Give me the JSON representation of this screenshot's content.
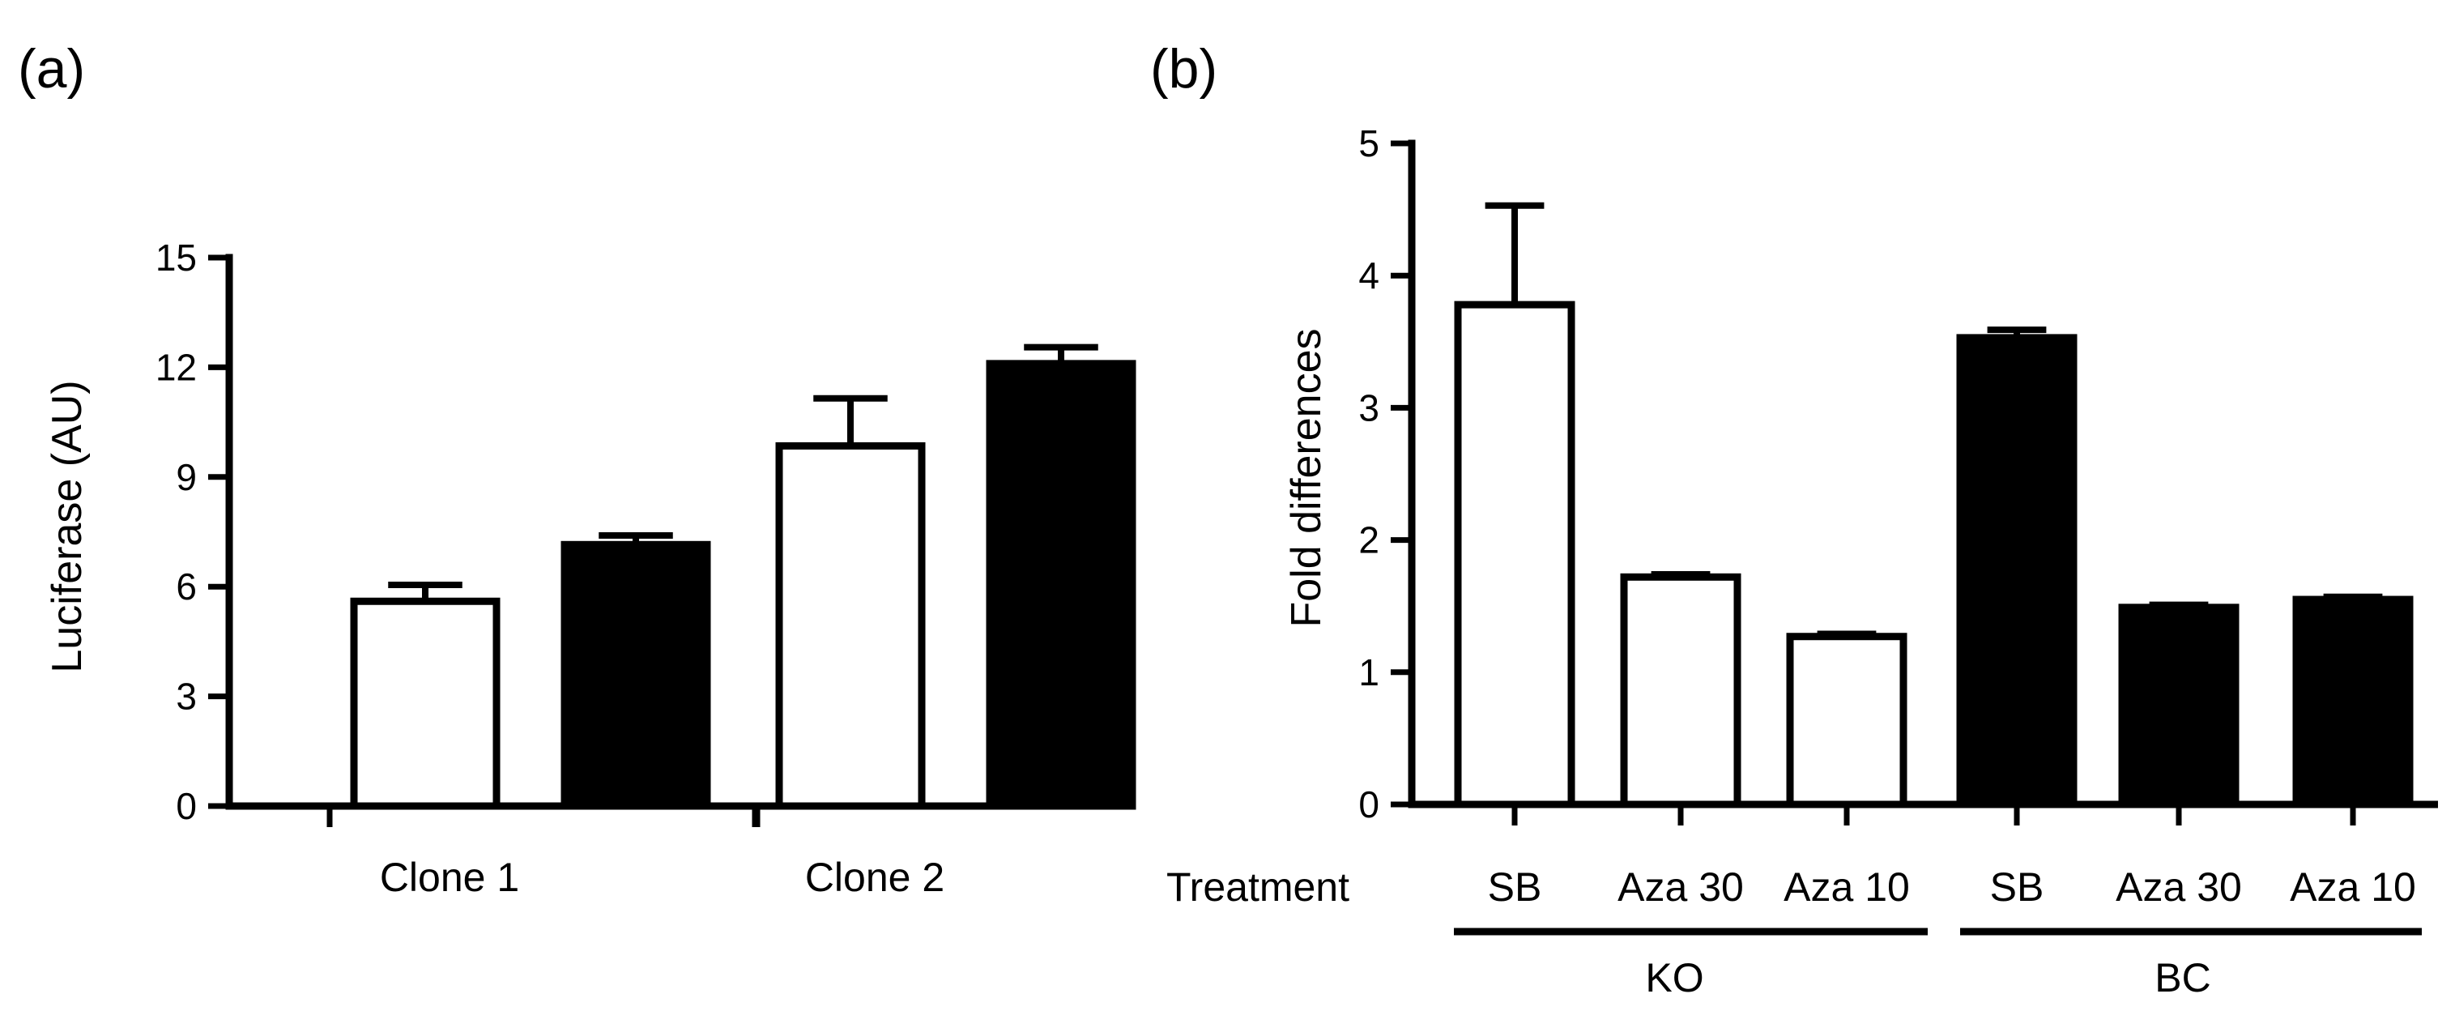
{
  "chart_data": [
    {
      "panel_label": "(a)",
      "type": "bar",
      "ylabel": "Luciferase (AU)",
      "ylim": [
        0,
        15
      ],
      "yticks": [
        0,
        3,
        6,
        9,
        12,
        15
      ],
      "ytick_labels": [
        "0",
        "3",
        "6",
        "9",
        "12",
        "15"
      ],
      "groups": [
        {
          "label": "Clone 1",
          "bars": [
            {
              "fill": "white",
              "value": 5.6,
              "error": 0.45
            },
            {
              "fill": "black",
              "value": 7.15,
              "error": 0.25
            }
          ]
        },
        {
          "label": "Clone 2",
          "bars": [
            {
              "fill": "white",
              "value": 9.85,
              "error": 1.3
            },
            {
              "fill": "black",
              "value": 12.1,
              "error": 0.45
            }
          ]
        }
      ]
    },
    {
      "panel_label": "(b)",
      "type": "bar",
      "ylabel": "Fold differences",
      "ylim": [
        0,
        5
      ],
      "yticks": [
        0,
        1,
        2,
        3,
        4,
        5
      ],
      "ytick_labels": [
        "0",
        "1",
        "2",
        "3",
        "4",
        "5"
      ],
      "row_label": "Treatment",
      "categories": [
        "SB",
        "Aza 30",
        "Aza 10",
        "SB",
        "Aza 30",
        "Aza 10"
      ],
      "bars": [
        {
          "fill": "white",
          "value": 3.78,
          "error": 0.75
        },
        {
          "fill": "white",
          "value": 1.72,
          "error": 0.02
        },
        {
          "fill": "white",
          "value": 1.27,
          "error": 0.02
        },
        {
          "fill": "black",
          "value": 3.53,
          "error": 0.06
        },
        {
          "fill": "black",
          "value": 1.49,
          "error": 0.02
        },
        {
          "fill": "black",
          "value": 1.55,
          "error": 0.02
        }
      ],
      "group_labels": [
        {
          "label": "KO",
          "members": [
            0,
            1,
            2
          ]
        },
        {
          "label": "BC",
          "members": [
            3,
            4,
            5
          ]
        }
      ]
    }
  ]
}
